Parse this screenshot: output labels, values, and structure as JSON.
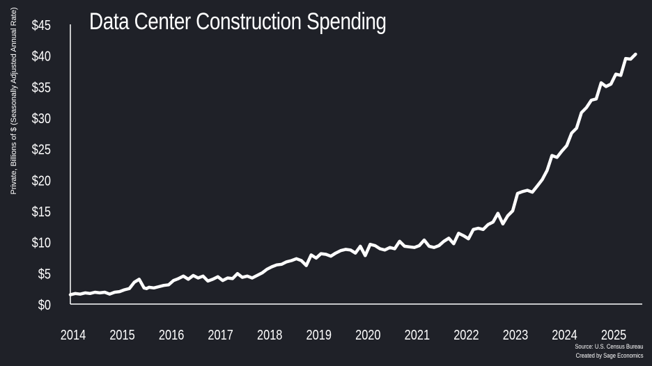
{
  "chart_data": {
    "type": "line",
    "title": "Data Center Construction Spending",
    "ylabel": "Private, Billions of $ (Seasonally Adjusted Annual Rate)",
    "xlabel": "",
    "ylim": [
      0,
      45
    ],
    "xlim": [
      2014.0,
      2025.58
    ],
    "grid": false,
    "y_ticks": [
      0,
      5,
      10,
      15,
      20,
      25,
      30,
      35,
      40,
      45
    ],
    "y_tick_labels": [
      "$0",
      "$5",
      "$10",
      "$15",
      "$20",
      "$25",
      "$30",
      "$35",
      "$40",
      "$45"
    ],
    "x_ticks": [
      2014,
      2015,
      2016,
      2017,
      2018,
      2019,
      2020,
      2021,
      2022,
      2023,
      2024,
      2025
    ],
    "x_tick_labels": [
      "2014",
      "2015",
      "2016",
      "2017",
      "2018",
      "2019",
      "2020",
      "2021",
      "2022",
      "2023",
      "2024",
      "2025"
    ],
    "series": [
      {
        "name": "Data Center Construction Spending",
        "color": "#ffffff",
        "x": [
          2014.0,
          2014.1,
          2014.2,
          2014.3,
          2014.4,
          2014.5,
          2014.6,
          2014.7,
          2014.8,
          2014.9,
          2015.0,
          2015.1,
          2015.2,
          2015.3,
          2015.4,
          2015.5,
          2015.55,
          2015.6,
          2015.7,
          2015.8,
          2015.9,
          2016.0,
          2016.1,
          2016.2,
          2016.3,
          2016.4,
          2016.5,
          2016.6,
          2016.7,
          2016.8,
          2016.9,
          2017.0,
          2017.1,
          2017.2,
          2017.3,
          2017.4,
          2017.5,
          2017.6,
          2017.7,
          2017.8,
          2017.9,
          2018.0,
          2018.1,
          2018.2,
          2018.3,
          2018.4,
          2018.5,
          2018.6,
          2018.7,
          2018.8,
          2018.9,
          2019.0,
          2019.1,
          2019.2,
          2019.3,
          2019.4,
          2019.5,
          2019.6,
          2019.7,
          2019.8,
          2019.9,
          2020.0,
          2020.1,
          2020.2,
          2020.3,
          2020.4,
          2020.5,
          2020.6,
          2020.7,
          2020.8,
          2020.9,
          2021.0,
          2021.1,
          2021.2,
          2021.3,
          2021.4,
          2021.5,
          2021.6,
          2021.7,
          2021.8,
          2021.9,
          2022.0,
          2022.1,
          2022.2,
          2022.3,
          2022.4,
          2022.5,
          2022.6,
          2022.7,
          2022.8,
          2022.9,
          2023.0,
          2023.1,
          2023.2,
          2023.3,
          2023.4,
          2023.5,
          2023.6,
          2023.7,
          2023.8,
          2023.9,
          2024.0,
          2024.1,
          2024.2,
          2024.3,
          2024.4,
          2024.5,
          2024.6,
          2024.7,
          2024.8,
          2024.9,
          2025.0,
          2025.1,
          2025.2,
          2025.3,
          2025.4,
          2025.5
        ],
        "values": [
          1.5,
          1.7,
          1.6,
          1.8,
          1.7,
          1.9,
          1.8,
          1.9,
          1.6,
          1.9,
          2.0,
          2.3,
          2.5,
          3.5,
          4.0,
          2.6,
          2.5,
          2.7,
          2.6,
          2.8,
          3.0,
          3.1,
          3.8,
          4.1,
          4.5,
          4.0,
          4.6,
          4.2,
          4.5,
          3.7,
          4.0,
          4.4,
          3.8,
          4.2,
          4.1,
          4.9,
          4.3,
          4.5,
          4.2,
          4.6,
          5.0,
          5.6,
          6.0,
          6.3,
          6.4,
          6.8,
          7.0,
          7.3,
          7.0,
          6.2,
          7.9,
          7.4,
          8.1,
          8.0,
          7.7,
          8.2,
          8.6,
          8.8,
          8.7,
          8.2,
          9.3,
          7.8,
          9.6,
          9.4,
          8.9,
          8.7,
          9.1,
          8.9,
          10.1,
          9.3,
          9.2,
          9.1,
          9.4,
          10.3,
          9.3,
          9.1,
          9.4,
          10.1,
          10.6,
          9.7,
          11.4,
          11.0,
          10.5,
          12.0,
          12.2,
          12.0,
          12.8,
          13.2,
          14.6,
          12.9,
          14.2,
          15.0,
          17.8,
          18.1,
          18.3,
          18.0,
          19.0,
          20.0,
          21.5,
          23.9,
          23.6,
          24.6,
          25.5,
          27.5,
          28.3,
          30.8,
          31.6,
          32.8,
          33.0,
          35.6,
          35.0,
          35.4,
          37.0,
          36.8,
          39.5,
          39.4,
          40.2
        ]
      }
    ]
  },
  "source_line_1": "Source: U.S. Census Bureau",
  "source_line_2": "Created by Sage Economics"
}
